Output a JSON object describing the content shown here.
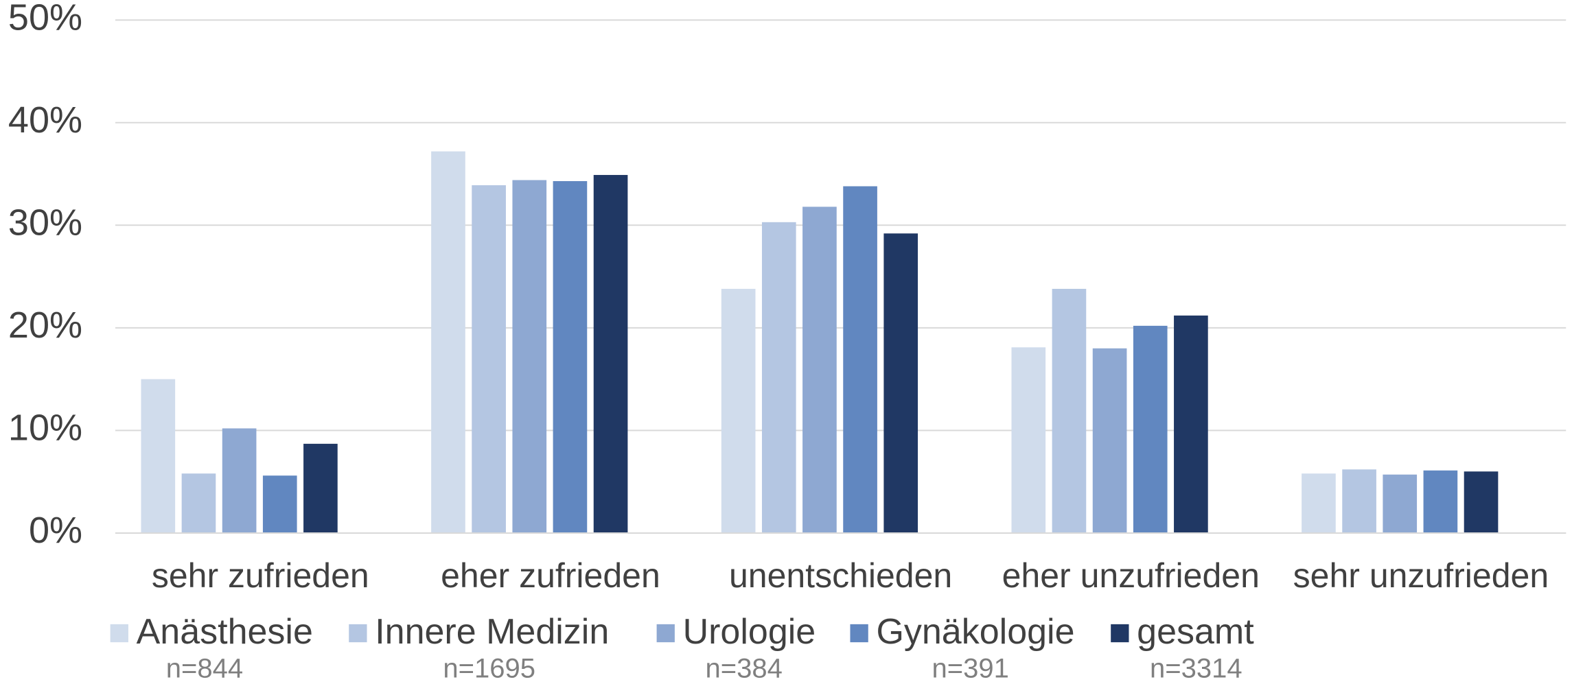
{
  "chart_data": {
    "type": "bar",
    "categories": [
      "sehr zufrieden",
      "eher zufrieden",
      "unentschieden",
      "eher unzufrieden",
      "sehr unzufrieden"
    ],
    "series": [
      {
        "name": "Anästhesie",
        "sample_label": "n=844",
        "color": "#d0dcec",
        "values": [
          15.0,
          37.2,
          23.8,
          18.1,
          5.8
        ]
      },
      {
        "name": "Innere Medizin",
        "sample_label": "n=1695",
        "color": "#b4c6e2",
        "values": [
          5.8,
          33.9,
          30.3,
          23.8,
          6.2
        ]
      },
      {
        "name": "Urologie",
        "sample_label": "n=384",
        "color": "#8ea8d2",
        "values": [
          10.2,
          34.4,
          31.8,
          18.0,
          5.7
        ]
      },
      {
        "name": "Gynäkologie",
        "sample_label": "n=391",
        "color": "#6187c0",
        "values": [
          5.6,
          34.3,
          33.8,
          20.2,
          6.1
        ]
      },
      {
        "name": "gesamt",
        "sample_label": "n=3314",
        "color": "#203864",
        "values": [
          8.7,
          34.9,
          29.2,
          21.2,
          6.0
        ]
      }
    ],
    "ylim": [
      0,
      50
    ],
    "yticks": [
      {
        "value": 0,
        "label": "0%"
      },
      {
        "value": 10,
        "label": "10%"
      },
      {
        "value": 20,
        "label": "20%"
      },
      {
        "value": 30,
        "label": "30%"
      },
      {
        "value": 40,
        "label": "40%"
      },
      {
        "value": 50,
        "label": "50%"
      }
    ],
    "grid": true,
    "legend": "bottom"
  }
}
